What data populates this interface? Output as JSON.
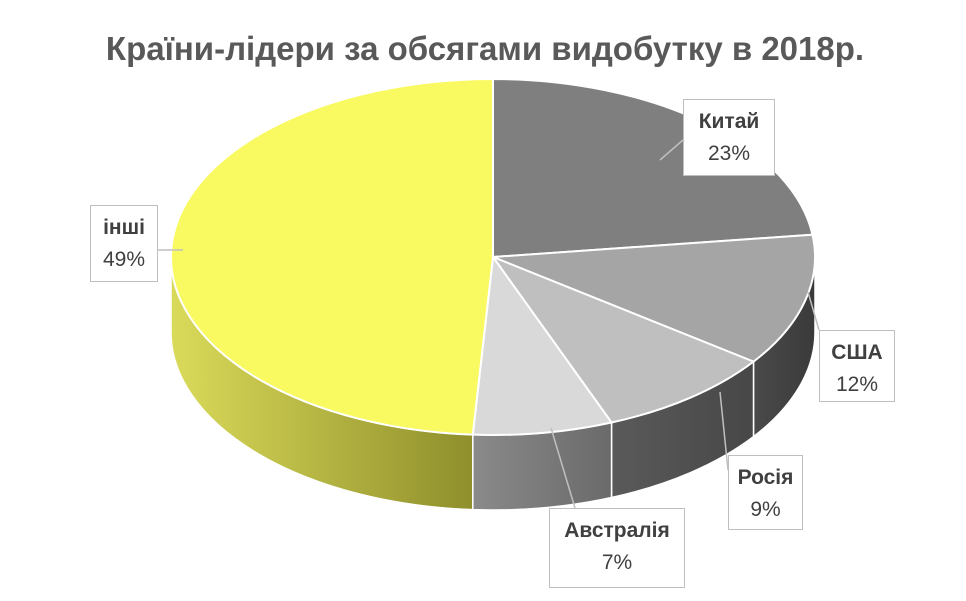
{
  "chart_data": {
    "type": "pie",
    "title": "Країни-лідери за обсягами видобутку в 2018р.",
    "three_d": true,
    "slices": [
      {
        "label": "Китай",
        "value": 23,
        "value_label": "23%",
        "color": "#7f7f7f"
      },
      {
        "label": "США",
        "value": 12,
        "value_label": "12%",
        "color": "#a5a5a5"
      },
      {
        "label": "Росія",
        "value": 9,
        "value_label": "9%",
        "color": "#bfbfbf"
      },
      {
        "label": "Австралія",
        "value": 7,
        "value_label": "7%",
        "color": "#d9d9d9"
      },
      {
        "label": "інші",
        "value": 49,
        "value_label": "49%",
        "color": "#f9f961"
      }
    ]
  }
}
